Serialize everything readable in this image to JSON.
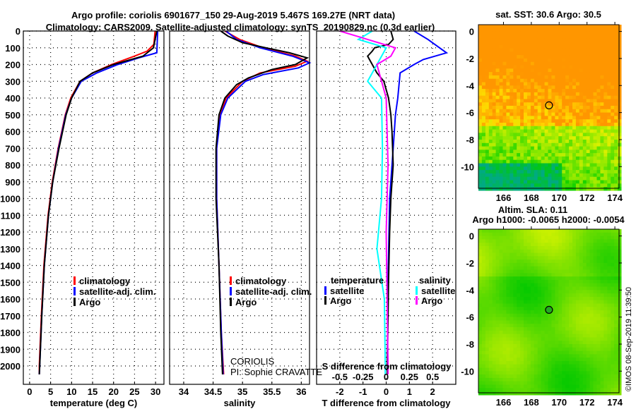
{
  "title_line1": "Argo profile: coriolis 6901677_150 29-Aug-2019 5.467S 169.27E (NRT data)",
  "title_line2": "Climatology: CARS2009. Satellite-adjusted climatology: synTS_20190829.nc (0.3d earlier)",
  "copyright": "©IMOS 08-Sep-2019 11:39:50",
  "colors": {
    "argo": "#000000",
    "clim": "#ff0000",
    "sat": "#0000ff",
    "s_sat": "#00ffff",
    "s_argo": "#ff00ff"
  },
  "chart_data": [
    {
      "type": "line",
      "id": "temperature",
      "xlabel": "temperature (deg C)",
      "ylabel": "",
      "xlim": [
        -1.5,
        32
      ],
      "ylim": [
        2110,
        0
      ],
      "xticks": [
        0,
        5,
        10,
        15,
        20,
        25,
        30
      ],
      "yticks": [
        0,
        100,
        200,
        300,
        400,
        500,
        600,
        700,
        800,
        900,
        1000,
        1100,
        1200,
        1300,
        1400,
        1500,
        1600,
        1700,
        1800,
        1900,
        2000
      ],
      "grid": true,
      "legend": {
        "placement": "bottom-right",
        "entries": [
          "climatology",
          "satellite-adj. clim.",
          "Argo"
        ]
      },
      "series": [
        {
          "name": "climatology",
          "color_key": "clim",
          "depth": [
            0,
            80,
            120,
            150,
            200,
            250,
            300,
            400,
            500,
            700,
            900,
            1100,
            1400,
            1700,
            2000,
            2050
          ],
          "values": [
            29.9,
            29.6,
            28,
            25,
            19.5,
            15,
            12,
            9.8,
            8.5,
            6.8,
            5.4,
            4.4,
            3.4,
            2.8,
            2.3,
            2.3
          ]
        },
        {
          "name": "satellite-adj. clim.",
          "color_key": "sat",
          "depth": [
            0,
            130,
            160,
            200,
            250,
            300,
            400,
            500,
            700,
            900,
            1100,
            1400,
            1700,
            2000,
            2050
          ],
          "values": [
            30.5,
            30.3,
            26,
            21,
            16,
            12.3,
            10,
            8.6,
            6.9,
            5.5,
            4.5,
            3.5,
            2.9,
            2.4,
            2.3
          ]
        },
        {
          "name": "Argo",
          "color_key": "argo",
          "depth": [
            0,
            100,
            150,
            200,
            250,
            300,
            400,
            500,
            700,
            900,
            1100,
            1400,
            1700,
            2000,
            2050
          ],
          "values": [
            30.3,
            29.5,
            27,
            20,
            15,
            12,
            10,
            8.7,
            7,
            5.5,
            4.5,
            3.5,
            2.9,
            2.4,
            2.3
          ]
        }
      ]
    },
    {
      "type": "line",
      "id": "salinity",
      "xlabel": "salinity",
      "xlim": [
        33.76,
        36.14
      ],
      "ylim": [
        2110,
        0
      ],
      "xticks": [
        34,
        34.5,
        35,
        35.5,
        36
      ],
      "grid": true,
      "legend": {
        "placement": "bottom-right",
        "entries": [
          "climatology",
          "satellite-adj. clim.",
          "Argo"
        ]
      },
      "annotation": [
        "CORIOLIS",
        "PI: Sophie CRAVATTE"
      ],
      "series": [
        {
          "name": "climatology",
          "color_key": "clim",
          "depth": [
            0,
            50,
            100,
            150,
            180,
            210,
            250,
            300,
            400,
            500,
            700,
            1000,
            1400,
            1800,
            2050
          ],
          "values": [
            34.7,
            34.95,
            35.35,
            35.9,
            36.1,
            35.9,
            35.3,
            35.0,
            34.72,
            34.62,
            34.56,
            34.56,
            34.6,
            34.64,
            34.68
          ]
        },
        {
          "name": "satellite-adj. clim.",
          "color_key": "sat",
          "depth": [
            0,
            50,
            100,
            150,
            190,
            220,
            260,
            300,
            400,
            500,
            700,
            1000,
            1400,
            1800,
            2050
          ],
          "values": [
            34.72,
            34.9,
            35.3,
            35.85,
            36.14,
            35.95,
            35.35,
            35.05,
            34.75,
            34.63,
            34.56,
            34.56,
            34.6,
            34.64,
            34.67
          ]
        },
        {
          "name": "Argo",
          "color_key": "argo",
          "depth": [
            0,
            30,
            70,
            100,
            130,
            160,
            200,
            230,
            280,
            320,
            400,
            500,
            700,
            1000,
            1400,
            1800,
            2050
          ],
          "values": [
            34.63,
            34.75,
            35.0,
            35.4,
            35.8,
            36.1,
            35.9,
            35.5,
            35.1,
            34.9,
            34.7,
            34.6,
            34.55,
            34.55,
            34.6,
            34.63,
            34.66
          ]
        }
      ]
    },
    {
      "type": "line",
      "id": "differences",
      "xlabel": "T difference from climatology",
      "x2label": "S difference from climatology",
      "xlim": [
        -3,
        3
      ],
      "x2lim": [
        -0.75,
        0.75
      ],
      "ylim": [
        2110,
        0
      ],
      "xticks": [
        -2,
        -1,
        0,
        1,
        2
      ],
      "x2ticks": [
        -0.5,
        -0.25,
        0,
        0.25,
        0.5
      ],
      "x2ticklabels": [
        "-0.5",
        "-0.25",
        "0",
        "0.25",
        "0.5"
      ],
      "grid": true,
      "legend": {
        "placement": "bottom",
        "temperature_title": "temperature",
        "salinity_title": "salinity",
        "entries": [
          "satellite",
          "Argo",
          "satellite",
          "Argo"
        ]
      },
      "series": [
        {
          "name": "T satellite",
          "axis": "T",
          "color_key": "sat",
          "depth": [
            0,
            50,
            100,
            130,
            170,
            200,
            250,
            400,
            500,
            700,
            1000,
            1500,
            2000,
            2050
          ],
          "values": [
            1.2,
            1.8,
            2.3,
            2.6,
            1.6,
            1.2,
            0.6,
            0.5,
            0.4,
            0.3,
            0.15,
            0.08,
            0.05,
            0.05
          ]
        },
        {
          "name": "T Argo",
          "axis": "T",
          "color_key": "argo",
          "depth": [
            0,
            50,
            80,
            100,
            120,
            150,
            200,
            250,
            300,
            400,
            500,
            600,
            800,
            1000,
            1200,
            1500,
            2000,
            2050
          ],
          "values": [
            0.2,
            0.3,
            0.1,
            -0.5,
            -0.6,
            -0.8,
            -0.6,
            -0.4,
            -0.1,
            0.1,
            0.2,
            0.25,
            0.3,
            0.2,
            0.15,
            0.1,
            0.05,
            0.05
          ]
        },
        {
          "name": "S satellite",
          "axis": "S",
          "color_key": "s_sat",
          "depth": [
            0,
            50,
            100,
            200,
            300,
            400,
            700,
            1000,
            1300,
            1600,
            2000,
            2050
          ],
          "values": [
            -0.15,
            -0.3,
            0.0,
            -0.1,
            -0.2,
            -0.05,
            -0.04,
            -0.05,
            -0.1,
            -0.02,
            -0.01,
            -0.01
          ]
        },
        {
          "name": "S Argo",
          "axis": "S",
          "color_key": "s_argo",
          "depth": [
            0,
            50,
            100,
            150,
            200,
            400,
            800,
            1200,
            2000,
            2050
          ],
          "values": [
            -0.5,
            -0.2,
            0.1,
            0.05,
            -0.1,
            0.0,
            0.02,
            0.0,
            0.02,
            0.02
          ]
        }
      ]
    },
    {
      "type": "heatmap",
      "id": "sst_map",
      "title": "sat. SST: 30.6 Argo: 30.5",
      "xlim": [
        164.2,
        174.3
      ],
      "ylim": [
        -11.6,
        0.5
      ],
      "xticks": [
        166,
        168,
        170,
        172,
        174
      ],
      "yticks": [
        0,
        -2,
        -4,
        -6,
        -8,
        -10
      ],
      "marker": {
        "lon": 169.27,
        "lat": -5.467
      }
    },
    {
      "type": "heatmap",
      "id": "sla_map",
      "title": "Altim. SLA: 0.11",
      "subtitle": "Argo h1000: -0.0065 h2000: -0.0054",
      "xlim": [
        164.2,
        174.3
      ],
      "ylim": [
        -11.6,
        0.5
      ],
      "xticks": [
        166,
        168,
        170,
        172,
        174
      ],
      "yticks": [
        0,
        -2,
        -4,
        -6,
        -8,
        -10
      ],
      "marker": {
        "lon": 169.27,
        "lat": -5.467
      }
    }
  ]
}
